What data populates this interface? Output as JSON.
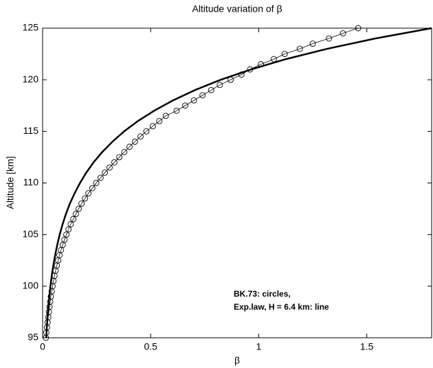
{
  "chart_data": {
    "type": "scatter",
    "title": "Altitude variation of β",
    "x_label": "β",
    "y_label": "Altitude [km]",
    "annotations": [
      "BK.73: circles,",
      "Exp.law, H = 6.4 km: line"
    ],
    "xlim": [
      0,
      1.8
    ],
    "ylim": [
      95,
      125
    ],
    "xticks": [
      0,
      0.5,
      1,
      1.5
    ],
    "yticks": [
      95,
      100,
      105,
      110,
      115,
      120,
      125
    ],
    "grid": false,
    "series": [
      {
        "color": "#000000",
        "marker": "circle",
        "line_width": 0.8,
        "x": [
          0.015,
          0.017,
          0.02,
          0.023,
          0.026,
          0.029,
          0.032,
          0.035,
          0.038,
          0.042,
          0.046,
          0.05,
          0.055,
          0.06,
          0.066,
          0.072,
          0.078,
          0.085,
          0.093,
          0.101,
          0.11,
          0.12,
          0.13,
          0.142,
          0.154,
          0.167,
          0.18,
          0.196,
          0.212,
          0.23,
          0.248,
          0.268,
          0.288,
          0.31,
          0.332,
          0.355,
          0.378,
          0.402,
          0.427,
          0.453,
          0.48,
          0.51,
          0.54,
          0.57,
          0.62,
          0.66,
          0.7,
          0.74,
          0.78,
          0.82,
          0.87,
          0.92,
          0.96,
          1.01,
          1.07,
          1.12,
          1.19,
          1.25,
          1.325,
          1.39,
          1.46
        ],
        "y": [
          95,
          95.5,
          96,
          96.5,
          97,
          97.5,
          98,
          98.5,
          99,
          99.5,
          100,
          100.5,
          101,
          101.5,
          102,
          102.5,
          103,
          103.5,
          104,
          104.5,
          105,
          105.5,
          106,
          106.5,
          107,
          107.5,
          108,
          108.5,
          109,
          109.5,
          110,
          110.5,
          111,
          111.5,
          112,
          112.5,
          113,
          113.5,
          114,
          114.5,
          115,
          115.5,
          116,
          116.5,
          117,
          117.5,
          118,
          118.5,
          119,
          119.5,
          120,
          120.5,
          121,
          121.5,
          122,
          122.5,
          123,
          123.5,
          124,
          124.5,
          125
        ]
      },
      {
        "color": "#000000",
        "line_width": 2.5,
        "x": [
          0.0166,
          0.0194,
          0.0227,
          0.0265,
          0.031,
          0.0362,
          0.0423,
          0.0495,
          0.0579,
          0.0677,
          0.0791,
          0.0925,
          0.108,
          0.126,
          0.148,
          0.173,
          0.202,
          0.236,
          0.276,
          0.323,
          0.377,
          0.441,
          0.516,
          0.603,
          0.705,
          0.824,
          0.964,
          1.126,
          1.317,
          1.54,
          1.8
        ],
        "y": [
          95,
          96,
          97,
          98,
          99,
          100,
          101,
          102,
          103,
          104,
          105,
          106,
          107,
          108,
          109,
          110,
          111,
          112,
          113,
          114,
          115,
          116,
          117,
          118,
          119,
          120,
          121,
          122,
          123,
          124,
          125
        ]
      }
    ]
  }
}
